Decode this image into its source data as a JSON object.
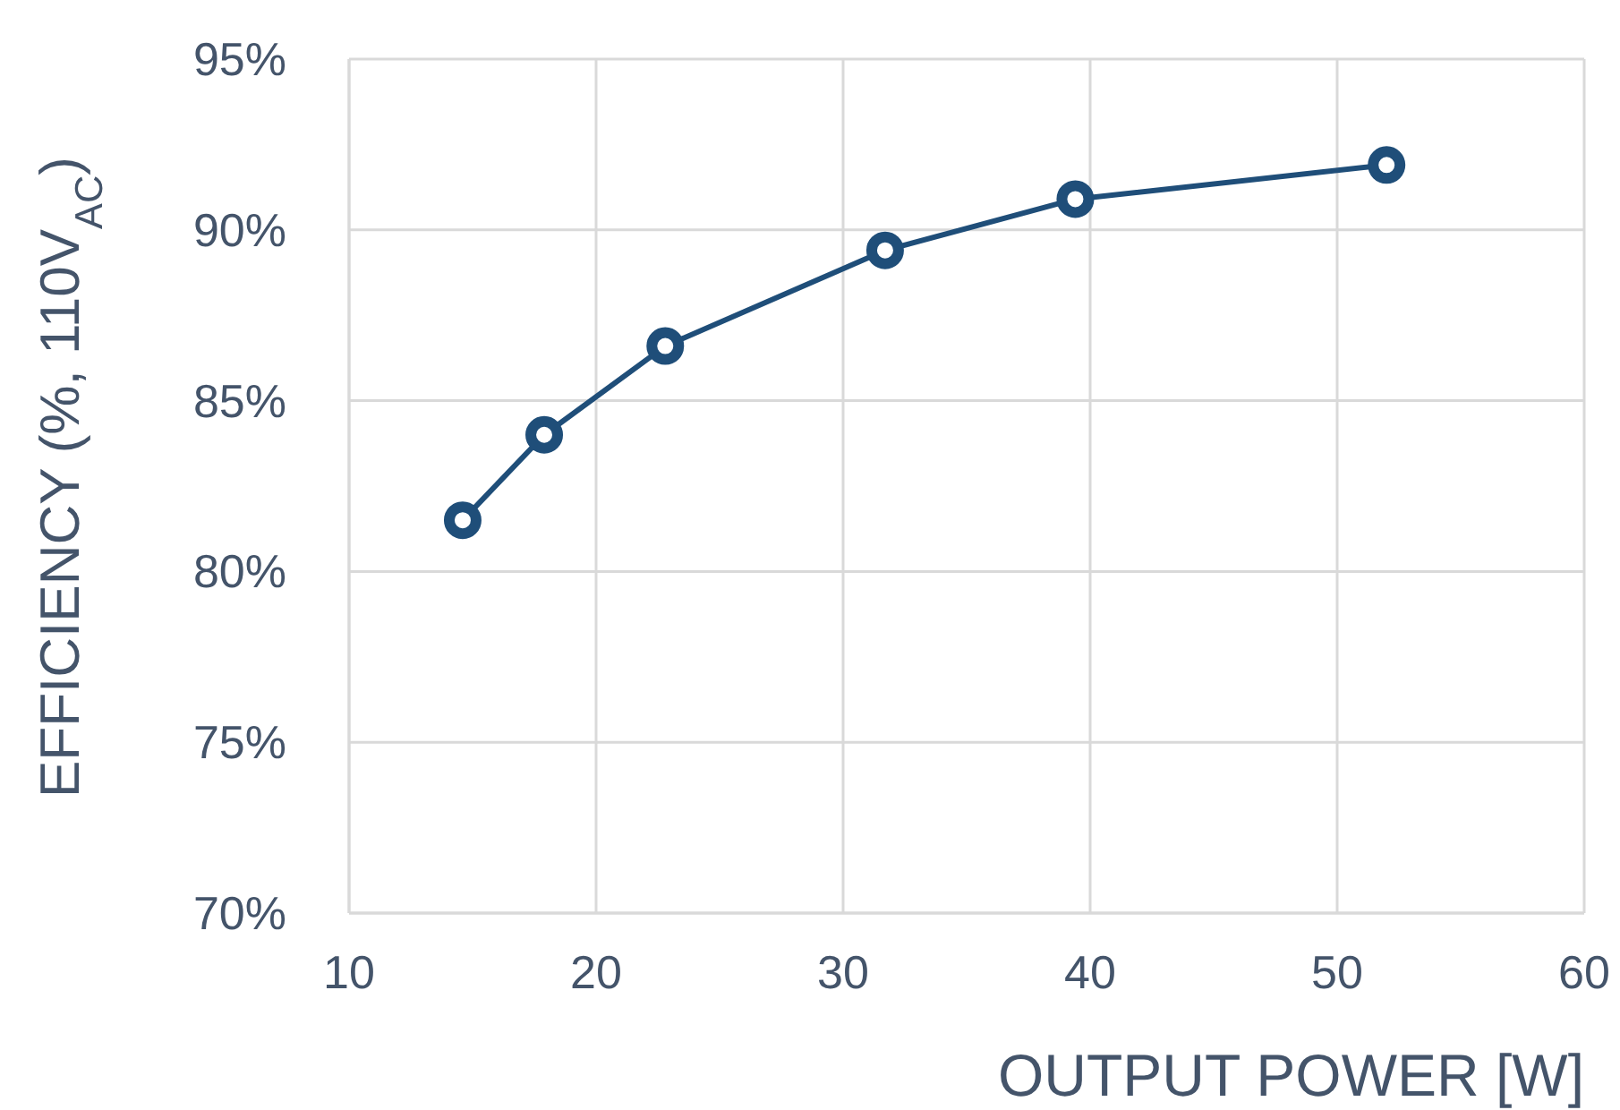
{
  "chart_data": {
    "type": "line",
    "xlabel": "OUTPUT POWER [W]",
    "ylabel": "EFFICIENCY (%, 110V$_{AC}$)",
    "x": [
      14.6,
      17.9,
      22.8,
      31.7,
      39.4,
      52.0
    ],
    "series": [
      {
        "color": "#1f4e79",
        "values": [
          81.5,
          84.0,
          86.6,
          89.4,
          90.9,
          91.9
        ]
      }
    ],
    "xlim": [
      10,
      60
    ],
    "xticks": [
      10,
      20,
      30,
      40,
      50,
      60
    ],
    "ylim": [
      70,
      95
    ],
    "yticks": [
      {
        "value": 70,
        "label": "70%"
      },
      {
        "value": 75,
        "label": "75%"
      },
      {
        "value": 80,
        "label": "80%"
      },
      {
        "value": 85,
        "label": "85%"
      },
      {
        "value": 90,
        "label": "90%"
      },
      {
        "value": 95,
        "label": "95%"
      }
    ],
    "grid": true,
    "marker": "circle",
    "line_style": "solid"
  }
}
